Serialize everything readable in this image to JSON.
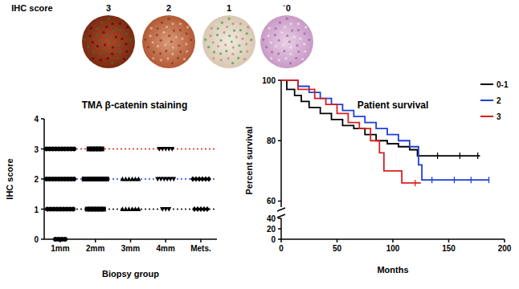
{
  "header": {
    "label": "IHC score",
    "scores": [
      "3",
      "2",
      "1",
      "´0"
    ]
  },
  "chart_data": [
    {
      "type": "scatter",
      "title": "TMA β-catenin staining",
      "x_label": "Biopsy group",
      "y_label": "IHC score",
      "categories": [
        "1mm",
        "2mm",
        "3mm",
        "4mm",
        "Mets."
      ],
      "ylim": [
        0,
        4
      ],
      "yticks": [
        0,
        1,
        2,
        3,
        4
      ],
      "reference_lines": [
        {
          "value": 1,
          "color": "#000000"
        },
        {
          "value": 2,
          "color": "#1f3fd6"
        },
        {
          "value": 3,
          "color": "#d62020"
        }
      ],
      "series": [
        {
          "marker": "circle",
          "color": "#000000",
          "x": [
            "1mm",
            "1mm",
            "1mm",
            "1mm",
            "1mm",
            "1mm",
            "1mm",
            "1mm",
            "1mm",
            "1mm",
            "1mm",
            "1mm",
            "1mm",
            "1mm",
            "1mm",
            "1mm",
            "1mm",
            "1mm",
            "1mm",
            "1mm",
            "1mm",
            "1mm",
            "1mm",
            "1mm",
            "1mm",
            "1mm",
            "1mm",
            "1mm",
            "1mm",
            "1mm",
            "1mm",
            "1mm",
            "1mm"
          ],
          "values": [
            0,
            0,
            0,
            0,
            1,
            1,
            1,
            1,
            1,
            1,
            1,
            1,
            1,
            2,
            2,
            2,
            2,
            2,
            2,
            2,
            2,
            2,
            2,
            3,
            3,
            3,
            3,
            3,
            3,
            3,
            3,
            3,
            3
          ]
        },
        {
          "marker": "square",
          "color": "#000000",
          "x": [
            "2mm",
            "2mm",
            "2mm",
            "2mm",
            "2mm",
            "2mm",
            "2mm",
            "2mm",
            "2mm",
            "2mm",
            "2mm",
            "2mm",
            "2mm",
            "2mm",
            "2mm",
            "2mm",
            "2mm",
            "2mm",
            "2mm"
          ],
          "values": [
            1,
            1,
            1,
            1,
            1,
            1,
            2,
            2,
            2,
            2,
            2,
            2,
            2,
            2,
            3,
            3,
            3,
            3,
            3
          ]
        },
        {
          "marker": "triangle",
          "color": "#000000",
          "x": [
            "3mm",
            "3mm",
            "3mm",
            "3mm",
            "3mm",
            "3mm",
            "3mm",
            "3mm",
            "3mm",
            "3mm",
            "3mm",
            "3mm"
          ],
          "values": [
            1,
            1,
            1,
            1,
            1,
            1,
            2,
            2,
            2,
            2,
            2,
            2
          ]
        },
        {
          "marker": "triangle-down",
          "color": "#000000",
          "x": [
            "4mm",
            "4mm",
            "4mm",
            "4mm",
            "4mm",
            "4mm",
            "4mm",
            "4mm",
            "4mm",
            "4mm",
            "4mm",
            "4mm",
            "4mm",
            "4mm"
          ],
          "values": [
            1,
            1,
            1,
            2,
            2,
            2,
            2,
            2,
            2,
            3,
            3,
            3,
            3,
            3
          ]
        },
        {
          "marker": "diamond",
          "color": "#000000",
          "x": [
            "Mets.",
            "Mets.",
            "Mets.",
            "Mets.",
            "Mets.",
            "Mets.",
            "Mets.",
            "Mets.",
            "Mets.",
            "Mets.",
            "Mets."
          ],
          "values": [
            1,
            1,
            1,
            1,
            1,
            2,
            2,
            2,
            2,
            2,
            2
          ]
        }
      ]
    },
    {
      "type": "line",
      "title": "Patient survival",
      "x_label": "Months",
      "y_label": "Percent survival",
      "xlim": [
        0,
        200
      ],
      "xticks": [
        0,
        50,
        100,
        150,
        200
      ],
      "ylim": [
        0,
        100
      ],
      "yticks": [
        0,
        20,
        40,
        60,
        80,
        100
      ],
      "y_break": [
        40,
        58
      ],
      "legend": "upper right",
      "series": [
        {
          "name": "0-1",
          "color": "#000000",
          "x": [
            0,
            5,
            5,
            12,
            12,
            18,
            18,
            25,
            25,
            35,
            35,
            45,
            45,
            55,
            55,
            65,
            65,
            75,
            75,
            85,
            85,
            95,
            95,
            105,
            105,
            115,
            115,
            122,
            122,
            178
          ],
          "values": [
            100,
            100,
            97,
            97,
            95,
            95,
            93,
            93,
            91,
            91,
            89,
            89,
            87,
            87,
            85,
            85,
            84,
            84,
            82,
            82,
            80,
            80,
            79,
            79,
            78,
            78,
            77,
            77,
            75,
            75
          ],
          "censored": [
            140,
            160,
            176
          ]
        },
        {
          "name": "2",
          "color": "#1f3fd6",
          "x": [
            0,
            15,
            15,
            25,
            25,
            35,
            35,
            45,
            45,
            55,
            55,
            65,
            65,
            75,
            75,
            85,
            85,
            95,
            95,
            105,
            105,
            115,
            115,
            123,
            123,
            126,
            126,
            186
          ],
          "values": [
            100,
            100,
            98,
            98,
            96,
            96,
            94,
            94,
            92,
            92,
            90,
            90,
            88,
            88,
            86,
            86,
            84,
            84,
            82,
            82,
            80,
            80,
            78,
            78,
            72,
            72,
            67,
            67
          ],
          "censored": [
            135,
            155,
            170,
            186
          ]
        },
        {
          "name": "3",
          "color": "#d62020",
          "x": [
            0,
            15,
            15,
            30,
            30,
            40,
            40,
            50,
            50,
            60,
            60,
            70,
            70,
            80,
            80,
            88,
            88,
            92,
            92,
            108,
            108,
            125
          ],
          "values": [
            100,
            100,
            97,
            97,
            94,
            94,
            92,
            92,
            89,
            89,
            86,
            86,
            84,
            84,
            80,
            80,
            76,
            76,
            70,
            70,
            66,
            66
          ],
          "censored": [
            120
          ]
        }
      ]
    }
  ]
}
